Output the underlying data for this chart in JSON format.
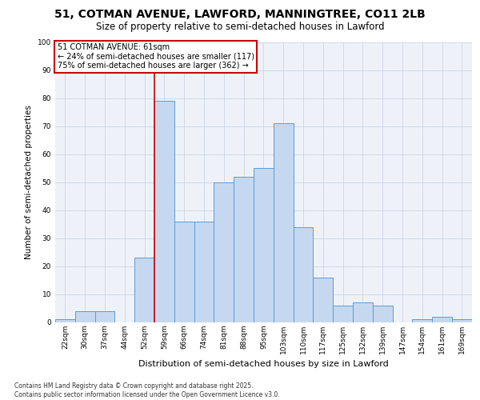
{
  "title_line1": "51, COTMAN AVENUE, LAWFORD, MANNINGTREE, CO11 2LB",
  "title_line2": "Size of property relative to semi-detached houses in Lawford",
  "xlabel": "Distribution of semi-detached houses by size in Lawford",
  "ylabel": "Number of semi-detached properties",
  "annotation_title": "51 COTMAN AVENUE: 61sqm",
  "annotation_line2": "← 24% of semi-detached houses are smaller (117)",
  "annotation_line3": "75% of semi-detached houses are larger (362) →",
  "footer1": "Contains HM Land Registry data © Crown copyright and database right 2025.",
  "footer2": "Contains public sector information licensed under the Open Government Licence v3.0.",
  "bins": [
    "22sqm",
    "30sqm",
    "37sqm",
    "44sqm",
    "52sqm",
    "59sqm",
    "66sqm",
    "74sqm",
    "81sqm",
    "88sqm",
    "95sqm",
    "103sqm",
    "110sqm",
    "117sqm",
    "125sqm",
    "132sqm",
    "139sqm",
    "147sqm",
    "154sqm",
    "161sqm",
    "169sqm"
  ],
  "values": [
    1,
    4,
    4,
    0,
    23,
    79,
    36,
    36,
    50,
    52,
    55,
    71,
    34,
    16,
    6,
    7,
    6,
    0,
    1,
    2,
    1
  ],
  "bar_color": "#c5d8f0",
  "bar_edge_color": "#5b9bd5",
  "vline_color": "#cc0000",
  "grid_color": "#d0d8e8",
  "background_color": "#eef2f8",
  "ylim": [
    0,
    100
  ],
  "yticks": [
    0,
    10,
    20,
    30,
    40,
    50,
    60,
    70,
    80,
    90,
    100
  ],
  "vline_position": 4.5,
  "title1_fontsize": 10,
  "title2_fontsize": 8.5,
  "ylabel_fontsize": 7.5,
  "xlabel_fontsize": 8,
  "tick_fontsize": 6.5,
  "ann_fontsize": 7,
  "footer_fontsize": 5.5
}
